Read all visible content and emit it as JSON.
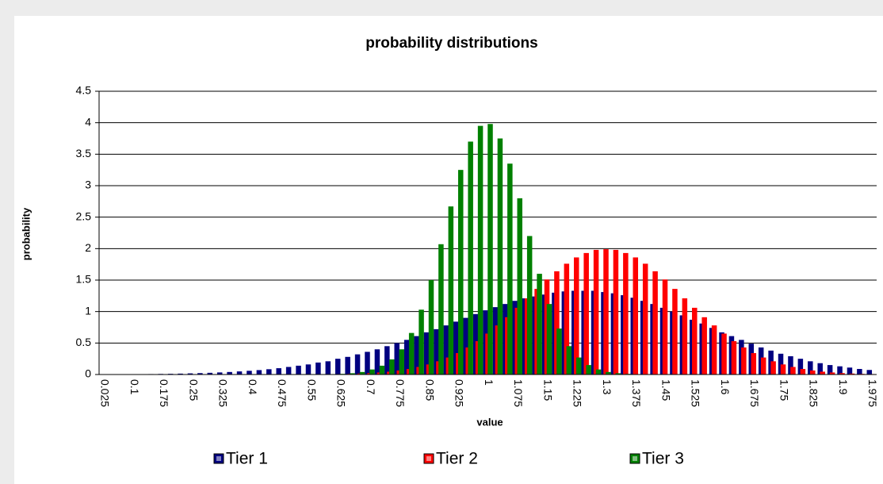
{
  "chart_data": {
    "type": "bar",
    "title": "probability distributions",
    "x_label": "value",
    "y_label": "probability",
    "categories": [
      "0.025",
      null,
      null,
      "0.1",
      null,
      null,
      "0.175",
      null,
      null,
      "0.25",
      null,
      null,
      "0.325",
      null,
      null,
      "0.4",
      null,
      null,
      "0.475",
      null,
      null,
      "0.55",
      null,
      null,
      "0.625",
      null,
      null,
      "0.7",
      null,
      null,
      "0.775",
      null,
      null,
      "0.85",
      null,
      null,
      "0.925",
      null,
      null,
      "1",
      null,
      null,
      "1.075",
      null,
      null,
      "1.15",
      null,
      null,
      "1.225",
      null,
      null,
      "1.3",
      null,
      null,
      "1.375",
      null,
      null,
      "1.45",
      null,
      null,
      "1.525",
      null,
      null,
      "1.6",
      null,
      null,
      "1.675",
      null,
      null,
      "1.75",
      null,
      null,
      "1.825",
      null,
      null,
      "1.9",
      null,
      null,
      "1.975"
    ],
    "series": [
      {
        "name": "Tier 1",
        "color": "#000080",
        "values": [
          0.002,
          0.003,
          0.003,
          0.004,
          0.006,
          0.007,
          0.009,
          0.011,
          0.014,
          0.018,
          0.022,
          0.027,
          0.033,
          0.04,
          0.049,
          0.059,
          0.07,
          0.084,
          0.1,
          0.12,
          0.14,
          0.16,
          0.19,
          0.21,
          0.25,
          0.28,
          0.32,
          0.36,
          0.4,
          0.45,
          0.5,
          0.55,
          0.61,
          0.67,
          0.72,
          0.78,
          0.84,
          0.9,
          0.96,
          1.02,
          1.07,
          1.12,
          1.17,
          1.21,
          1.24,
          1.27,
          1.3,
          1.32,
          1.33,
          1.33,
          1.33,
          1.31,
          1.29,
          1.26,
          1.22,
          1.17,
          1.12,
          1.06,
          1.0,
          0.94,
          0.87,
          0.81,
          0.74,
          0.67,
          0.61,
          0.55,
          0.49,
          0.43,
          0.38,
          0.33,
          0.29,
          0.25,
          0.21,
          0.18,
          0.15,
          0.13,
          0.11,
          0.088,
          0.072
        ]
      },
      {
        "name": "Tier 2",
        "color": "#ff0000",
        "values": [
          0,
          0,
          0,
          0,
          0,
          0,
          0,
          0,
          0,
          0,
          0,
          0,
          0,
          0,
          0,
          0,
          0,
          0,
          0,
          0,
          0,
          0,
          0.003,
          0.004,
          0.007,
          0.01,
          0.015,
          0.022,
          0.032,
          0.045,
          0.064,
          0.088,
          0.12,
          0.16,
          0.21,
          0.27,
          0.34,
          0.43,
          0.53,
          0.65,
          0.78,
          0.91,
          1.06,
          1.21,
          1.36,
          1.51,
          1.64,
          1.76,
          1.86,
          1.93,
          1.98,
          1.99,
          1.98,
          1.93,
          1.86,
          1.76,
          1.64,
          1.51,
          1.36,
          1.21,
          1.06,
          0.91,
          0.78,
          0.65,
          0.53,
          0.43,
          0.34,
          0.27,
          0.21,
          0.16,
          0.12,
          0.088,
          0.064,
          0.045,
          0.032,
          0.022,
          0.015,
          0.01,
          0.007
        ]
      },
      {
        "name": "Tier 3",
        "color": "#008000",
        "values": [
          0,
          0,
          0,
          0,
          0,
          0,
          0,
          0,
          0,
          0,
          0,
          0,
          0,
          0,
          0,
          0,
          0,
          0,
          0,
          0,
          0,
          0,
          0,
          0.005,
          0.01,
          0.02,
          0.04,
          0.08,
          0.14,
          0.24,
          0.4,
          0.66,
          1.03,
          1.5,
          2.07,
          2.67,
          3.25,
          3.7,
          3.95,
          3.98,
          3.75,
          3.35,
          2.8,
          2.2,
          1.6,
          1.12,
          0.73,
          0.45,
          0.27,
          0.15,
          0.08,
          0.04,
          0.02,
          0.01,
          0.005,
          0,
          0,
          0,
          0,
          0,
          0,
          0,
          0,
          0,
          0,
          0,
          0,
          0,
          0,
          0,
          0,
          0,
          0,
          0,
          0,
          0,
          0,
          0,
          0
        ]
      }
    ],
    "ylim": [
      0,
      4.5
    ],
    "yticks": [
      0,
      0.5,
      1,
      1.5,
      2,
      2.5,
      3,
      3.5,
      4,
      4.5
    ],
    "grid": true,
    "legend": "bottom"
  }
}
